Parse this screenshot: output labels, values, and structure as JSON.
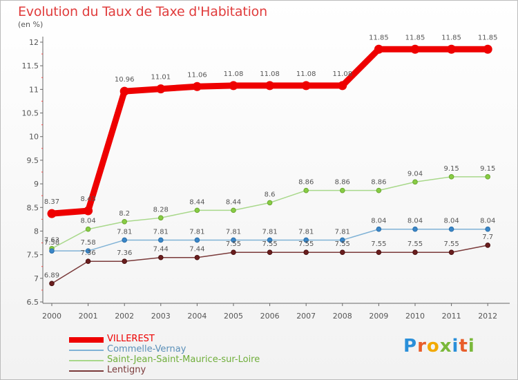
{
  "title": "Evolution du Taux de Taxe d'Habitation",
  "subtitle": "(en %)",
  "logo": {
    "text": "Proxiti",
    "letter_colors": [
      "#2a8fd9",
      "#e85d2a",
      "#f2a900",
      "#7ab83a",
      "#2a8fd9",
      "#e85d2a",
      "#7ab83a"
    ]
  },
  "chart_data": {
    "type": "line",
    "x": [
      "2000",
      "2001",
      "2002",
      "2003",
      "2004",
      "2005",
      "2006",
      "2007",
      "2008",
      "2009",
      "2010",
      "2011",
      "2012"
    ],
    "ylim": [
      6.5,
      12
    ],
    "yticks": [
      "6.5",
      "7",
      "7.5",
      "8",
      "8.5",
      "9",
      "9.5",
      "10",
      "10.5",
      "11",
      "11.5",
      "12"
    ],
    "grid": false,
    "legend_position": "bottom-left",
    "series": [
      {
        "name": "VILLEREST",
        "color": "#ee0000",
        "values": [
          8.37,
          8.43,
          10.96,
          11.01,
          11.06,
          11.08,
          11.08,
          11.08,
          11.08,
          11.85,
          11.85,
          11.85,
          11.85
        ]
      },
      {
        "name": "Commelle-Vernay",
        "color": "#7fb2d6",
        "values": [
          7.58,
          7.58,
          7.81,
          7.81,
          7.81,
          7.81,
          7.81,
          7.81,
          7.81,
          8.04,
          8.04,
          8.04,
          8.04
        ]
      },
      {
        "name": "Saint-Jean-Saint-Maurice-sur-Loire",
        "color": "#a8d88a",
        "values": [
          7.63,
          8.04,
          8.2,
          8.28,
          8.44,
          8.44,
          8.6,
          8.86,
          8.86,
          8.86,
          9.04,
          9.15,
          9.15
        ]
      },
      {
        "name": "Lentigny",
        "color": "#7a3a3a",
        "values": [
          6.89,
          7.36,
          7.36,
          7.44,
          7.44,
          7.55,
          7.55,
          7.55,
          7.55,
          7.55,
          7.55,
          7.55,
          7.7
        ]
      }
    ]
  }
}
